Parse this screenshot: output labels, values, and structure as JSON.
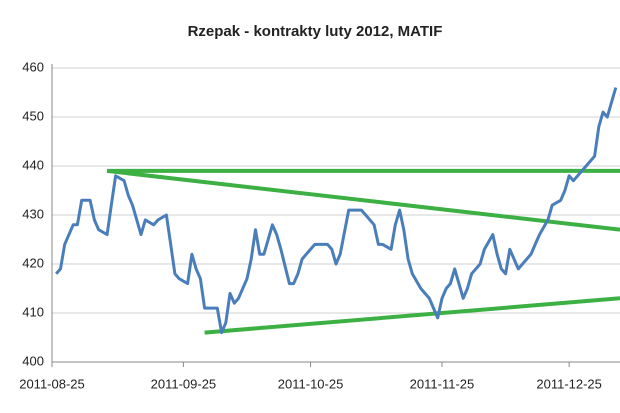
{
  "chart_data": {
    "type": "line",
    "title": "Rzepak - kontrakty luty 2012, MATIF",
    "x": [
      "2011-08-26",
      "2011-08-27",
      "2011-08-28",
      "2011-08-30",
      "2011-08-31",
      "2011-09-01",
      "2011-09-03",
      "2011-09-04",
      "2011-09-05",
      "2011-09-07",
      "2011-09-08",
      "2011-09-09",
      "2011-09-11",
      "2011-09-12",
      "2011-09-13",
      "2011-09-15",
      "2011-09-16",
      "2011-09-18",
      "2011-09-19",
      "2011-09-21",
      "2011-09-22",
      "2011-09-23",
      "2011-09-24",
      "2011-09-26",
      "2011-09-27",
      "2011-09-28",
      "2011-09-29",
      "2011-09-30",
      "2011-10-01",
      "2011-10-03",
      "2011-10-04",
      "2011-10-05",
      "2011-10-06",
      "2011-10-07",
      "2011-10-08",
      "2011-10-10",
      "2011-10-11",
      "2011-10-12",
      "2011-10-13",
      "2011-10-14",
      "2011-10-15",
      "2011-10-16",
      "2011-10-17",
      "2011-10-18",
      "2011-10-20",
      "2011-10-21",
      "2011-10-22",
      "2011-10-23",
      "2011-10-24",
      "2011-10-26",
      "2011-10-27",
      "2011-10-29",
      "2011-10-30",
      "2011-10-31",
      "2011-11-01",
      "2011-11-03",
      "2011-11-05",
      "2011-11-06",
      "2011-11-07",
      "2011-11-09",
      "2011-11-10",
      "2011-11-11",
      "2011-11-13",
      "2011-11-14",
      "2011-11-15",
      "2011-11-16",
      "2011-11-17",
      "2011-11-18",
      "2011-11-20",
      "2011-11-21",
      "2011-11-22",
      "2011-11-23",
      "2011-11-24",
      "2011-11-25",
      "2011-11-26",
      "2011-11-27",
      "2011-11-28",
      "2011-11-30",
      "2011-12-01",
      "2011-12-02",
      "2011-12-04",
      "2011-12-05",
      "2011-12-07",
      "2011-12-08",
      "2011-12-09",
      "2011-12-10",
      "2011-12-11",
      "2011-12-13",
      "2011-12-14",
      "2011-12-16",
      "2011-12-17",
      "2011-12-18",
      "2011-12-20",
      "2011-12-21",
      "2011-12-23",
      "2011-12-24",
      "2011-12-25",
      "2011-12-26",
      "2011-12-28",
      "2011-12-29",
      "2011-12-31",
      "2012-01-01",
      "2012-01-02",
      "2012-01-03",
      "2012-01-04",
      "2012-01-05"
    ],
    "series": [
      {
        "color": "#4a7ebb",
        "values": [
          418,
          419,
          424,
          428,
          428,
          433,
          433,
          429,
          427,
          426,
          432,
          438,
          437,
          434,
          432,
          426,
          429,
          428,
          429,
          430,
          424,
          418,
          417,
          416,
          422,
          419,
          417,
          411,
          411,
          411,
          406,
          408,
          414,
          412,
          413,
          417,
          421,
          427,
          422,
          422,
          425,
          428,
          426,
          423,
          416,
          416,
          418,
          421,
          422,
          424,
          424,
          424,
          423,
          420,
          422,
          431,
          431,
          431,
          430,
          428,
          424,
          424,
          423,
          428,
          431,
          427,
          421,
          418,
          415,
          414,
          413,
          411,
          409,
          413,
          415,
          416,
          419,
          413,
          415,
          418,
          420,
          423,
          426,
          422,
          419,
          418,
          423,
          419,
          420,
          422,
          424,
          426,
          429,
          432,
          433,
          435,
          438,
          437,
          439,
          440,
          442,
          448,
          451,
          450,
          453,
          456
        ]
      }
    ],
    "trend_lines": [
      {
        "color": "#3cb043",
        "x": [
          "2011-09-07",
          "2012-01-06"
        ],
        "values": [
          439,
          439
        ]
      },
      {
        "color": "#3cb043",
        "x": [
          "2011-09-07",
          "2012-01-06"
        ],
        "values": [
          439,
          427
        ]
      },
      {
        "color": "#3cb043",
        "x": [
          "2011-09-30",
          "2012-01-06"
        ],
        "values": [
          406,
          413
        ]
      }
    ],
    "xlim": [
      "2011-08-25",
      "2012-01-06"
    ],
    "xticks": [
      "2011-08-25",
      "2011-09-25",
      "2011-10-25",
      "2011-11-25",
      "2011-12-25"
    ],
    "ylim": [
      400,
      460
    ],
    "yticks": [
      400,
      410,
      420,
      430,
      440,
      450,
      460
    ],
    "grid": true
  }
}
